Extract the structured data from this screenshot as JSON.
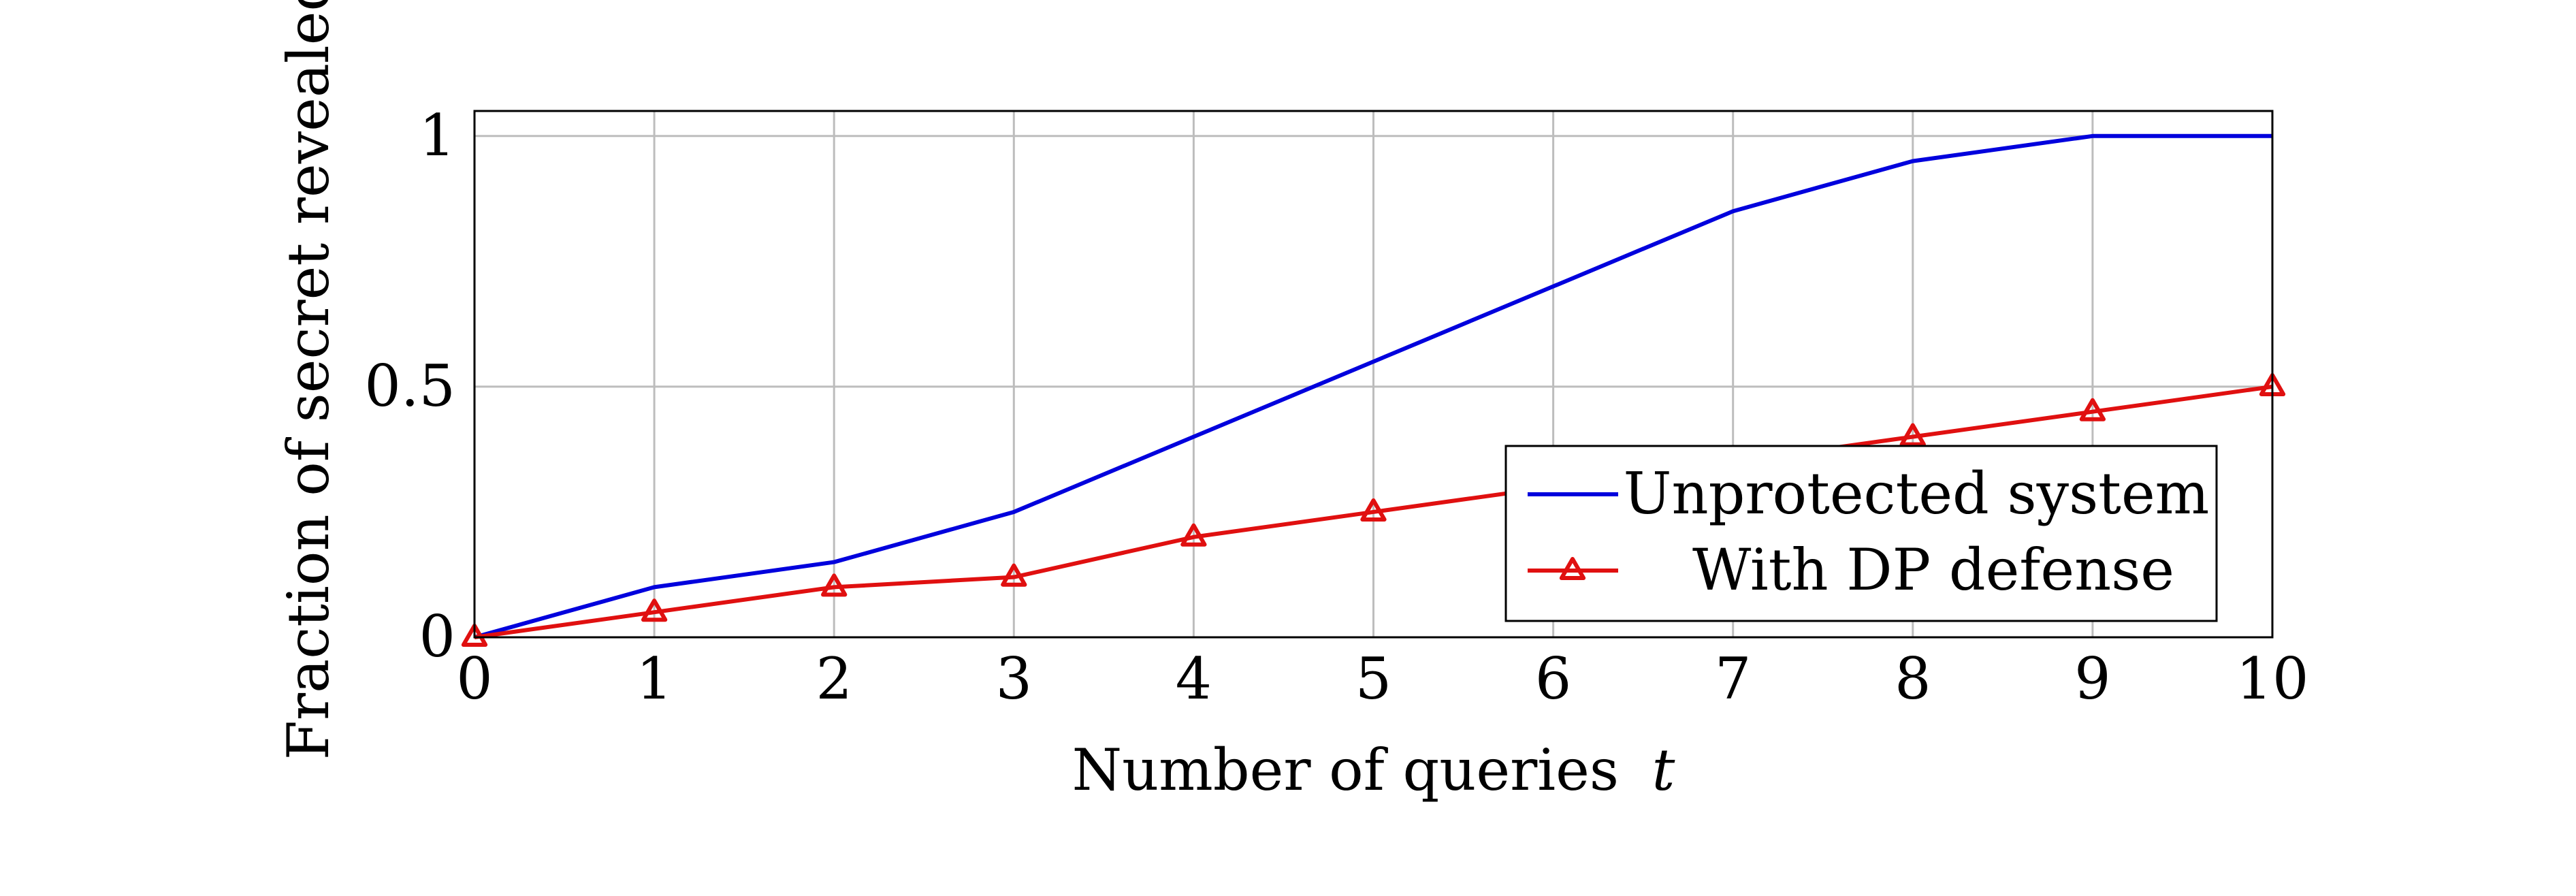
{
  "chart_data": {
    "type": "line",
    "xlabel": "Number of queries",
    "xlabel_var": "t",
    "ylabel": "Fraction of secret revealed",
    "xlim": [
      0,
      10
    ],
    "ylim": [
      0,
      1.05
    ],
    "x_ticks": [
      "0",
      "1",
      "2",
      "3",
      "4",
      "5",
      "6",
      "7",
      "8",
      "9",
      "10"
    ],
    "y_ticks": [
      "0",
      "0.5",
      "1"
    ],
    "grid": true,
    "legend_position": "bottom-right",
    "x": [
      0,
      1,
      2,
      3,
      4,
      5,
      6,
      7,
      8,
      9,
      10
    ],
    "series": [
      {
        "name": "Unprotected system",
        "color": "#0000dd",
        "marker": "none",
        "values": [
          0,
          0.1,
          0.15,
          0.25,
          0.4,
          0.55,
          0.7,
          0.85,
          0.95,
          1.0,
          1.0
        ]
      },
      {
        "name": "With DP defense",
        "color": "#e01010",
        "marker": "triangle",
        "values": [
          0,
          0.05,
          0.1,
          0.12,
          0.2,
          0.25,
          0.3,
          0.35,
          0.4,
          0.45,
          0.5
        ]
      }
    ]
  }
}
